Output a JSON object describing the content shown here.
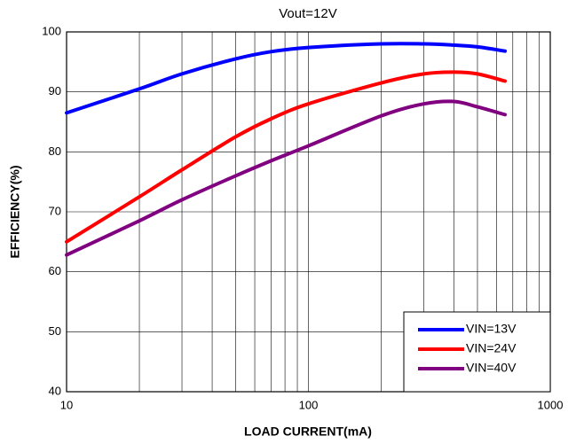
{
  "chart_data": {
    "type": "line",
    "title": "Vout=12V",
    "x_label": "LOAD CURRENT(mA)",
    "y_label": "EFFICIENCY(%)",
    "x": [
      10,
      20,
      30,
      50,
      70,
      100,
      200,
      300,
      400,
      500,
      650
    ],
    "series": [
      {
        "name": "VIN=13V",
        "color": "#0000ff",
        "values": [
          86.5,
          90.5,
          93,
          95.5,
          96.7,
          97.4,
          98,
          98,
          97.8,
          97.5,
          96.8
        ]
      },
      {
        "name": "VIN=24V",
        "color": "#ff0000",
        "values": [
          65,
          72.5,
          77,
          82.5,
          85.5,
          88,
          91.5,
          93,
          93.3,
          93,
          91.8
        ]
      },
      {
        "name": "VIN=40V",
        "color": "#800080",
        "values": [
          62.8,
          68.5,
          72,
          76,
          78.5,
          81,
          86,
          88,
          88.4,
          87.5,
          86.2
        ]
      }
    ],
    "xlim": [
      10,
      1000
    ],
    "xticks": [
      10,
      100,
      1000
    ],
    "xscale": "log",
    "ylim": [
      40,
      100
    ],
    "yticks": [
      40,
      50,
      60,
      70,
      80,
      90,
      100
    ],
    "grid": true,
    "legend": "lower right"
  }
}
